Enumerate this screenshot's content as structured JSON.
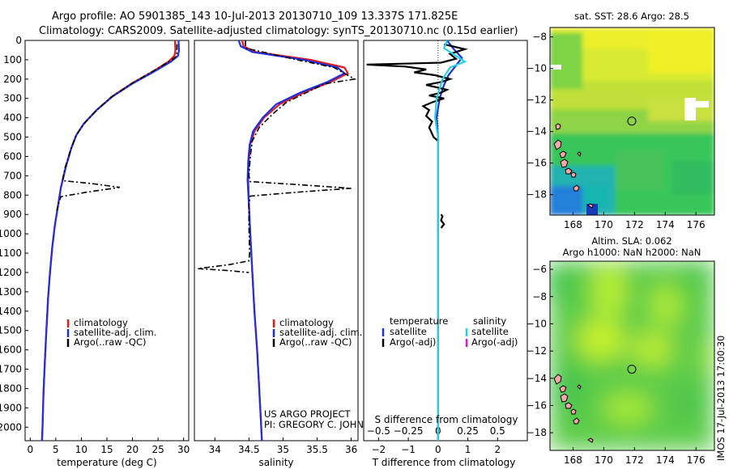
{
  "figure": {
    "title_line1": "Argo profile: AO 5901385_143 10-Jul-2013 20130710_109 13.337S 171.825E",
    "title_line2": "Climatology: CARS2009. Satellite-adjusted climatology: synTS_20130710.nc (0.15d earlier)",
    "credit_line1": "US ARGO PROJECT",
    "credit_line2": "PI: GREGORY C. JOHNSON",
    "side_stamp": "IMOS 17-Jul-2013 17:00:30",
    "colors": {
      "climatology": "#e41a1c",
      "satellite": "#1f2fe0",
      "argo": "#000000",
      "sal_sat": "#22d3e6",
      "sal_argo": "#d020d0"
    }
  },
  "chart_data": [
    {
      "id": "temperature",
      "type": "line",
      "xlabel": "temperature (deg C)",
      "xlim": [
        -1,
        31
      ],
      "xticks": [
        0,
        5,
        10,
        15,
        20,
        25,
        30
      ],
      "ylim": [
        2070,
        0
      ],
      "yticks": [
        0,
        100,
        200,
        300,
        400,
        500,
        600,
        700,
        800,
        900,
        1000,
        1100,
        1200,
        1300,
        1400,
        1500,
        1600,
        1700,
        1800,
        1900,
        2000
      ],
      "legend": [
        "climatology",
        "satellite-adj. clim.",
        "Argo(..raw -QC)"
      ],
      "legend_placement": "lower-center",
      "series": [
        {
          "name": "climatology",
          "style": "solid",
          "color": "#e41a1c",
          "points": [
            [
              28.3,
              0
            ],
            [
              28.4,
              50
            ],
            [
              28.2,
              80
            ],
            [
              27,
              110
            ],
            [
              24,
              160
            ],
            [
              20,
              220
            ],
            [
              16,
              290
            ],
            [
              13,
              360
            ],
            [
              10.5,
              430
            ],
            [
              9,
              490
            ],
            [
              8,
              560
            ],
            [
              7,
              650
            ],
            [
              6,
              760
            ],
            [
              5.4,
              860
            ],
            [
              4.8,
              960
            ],
            [
              4.3,
              1070
            ],
            [
              3.9,
              1190
            ],
            [
              3.5,
              1330
            ],
            [
              3.2,
              1480
            ],
            [
              2.9,
              1640
            ],
            [
              2.6,
              1820
            ],
            [
              2.4,
              2000
            ],
            [
              2.3,
              2070
            ]
          ]
        },
        {
          "name": "satellite-adj. clim.",
          "style": "solid",
          "color": "#1f2fe0",
          "points": [
            [
              29,
              0
            ],
            [
              29.1,
              50
            ],
            [
              28.9,
              80
            ],
            [
              27.5,
              110
            ],
            [
              24.3,
              160
            ],
            [
              20.2,
              220
            ],
            [
              16.1,
              290
            ],
            [
              13,
              360
            ],
            [
              10.5,
              430
            ],
            [
              9,
              490
            ],
            [
              8,
              560
            ],
            [
              7,
              650
            ],
            [
              6,
              760
            ],
            [
              5.4,
              860
            ],
            [
              4.8,
              960
            ],
            [
              4.3,
              1070
            ],
            [
              3.9,
              1190
            ],
            [
              3.5,
              1330
            ],
            [
              3.2,
              1480
            ],
            [
              2.9,
              1640
            ],
            [
              2.6,
              1820
            ],
            [
              2.4,
              2000
            ],
            [
              2.3,
              2070
            ]
          ]
        },
        {
          "name": "Argo(..raw -QC)",
          "style": "dashdot",
          "color": "#000000",
          "points": [
            [
              28.7,
              20
            ],
            [
              28.7,
              60
            ],
            [
              28.5,
              85
            ],
            [
              26.8,
              115
            ],
            [
              23.6,
              165
            ],
            [
              19.7,
              225
            ],
            [
              15.8,
              295
            ],
            [
              12.8,
              365
            ],
            [
              10.4,
              435
            ],
            [
              8.9,
              495
            ],
            [
              7.9,
              565
            ],
            [
              6.8,
              660
            ],
            [
              6.3,
              725
            ],
            [
              12,
              740
            ],
            [
              17.5,
              760
            ],
            [
              11,
              785
            ],
            [
              6,
              808
            ],
            [
              5.6,
              840
            ],
            [
              5.2,
              880
            ]
          ]
        }
      ]
    },
    {
      "id": "salinity",
      "type": "line",
      "xlabel": "salinity",
      "xlim": [
        33.7,
        36.1
      ],
      "xticks": [
        34,
        34.5,
        35,
        35.5,
        36
      ],
      "ylim": [
        2070,
        0
      ],
      "legend": [
        "climatology",
        "satellite-adj. clim.",
        "Argo(..raw -QC)"
      ],
      "legend_placement": "lower-center",
      "series": [
        {
          "name": "climatology",
          "style": "solid",
          "color": "#e41a1c",
          "points": [
            [
              34.4,
              0
            ],
            [
              34.42,
              30
            ],
            [
              34.6,
              60
            ],
            [
              35.4,
              100
            ],
            [
              35.9,
              140
            ],
            [
              35.95,
              170
            ],
            [
              35.7,
              215
            ],
            [
              35.3,
              270
            ],
            [
              34.95,
              330
            ],
            [
              34.72,
              400
            ],
            [
              34.58,
              470
            ],
            [
              34.52,
              540
            ],
            [
              34.5,
              620
            ],
            [
              34.49,
              720
            ],
            [
              34.5,
              850
            ],
            [
              34.52,
              1000
            ],
            [
              34.55,
              1200
            ],
            [
              34.58,
              1400
            ],
            [
              34.62,
              1600
            ],
            [
              34.65,
              1800
            ],
            [
              34.68,
              2000
            ],
            [
              34.69,
              2070
            ]
          ]
        },
        {
          "name": "satellite-adj. clim.",
          "style": "solid",
          "color": "#1f2fe0",
          "points": [
            [
              34.35,
              0
            ],
            [
              34.38,
              30
            ],
            [
              34.55,
              60
            ],
            [
              35.3,
              100
            ],
            [
              35.8,
              140
            ],
            [
              35.9,
              170
            ],
            [
              35.65,
              215
            ],
            [
              35.25,
              270
            ],
            [
              34.9,
              330
            ],
            [
              34.7,
              400
            ],
            [
              34.56,
              470
            ],
            [
              34.51,
              540
            ],
            [
              34.49,
              620
            ],
            [
              34.48,
              720
            ],
            [
              34.5,
              850
            ],
            [
              34.52,
              1000
            ],
            [
              34.55,
              1200
            ],
            [
              34.58,
              1400
            ],
            [
              34.62,
              1600
            ],
            [
              34.65,
              1800
            ],
            [
              34.68,
              2000
            ],
            [
              34.69,
              2070
            ]
          ]
        },
        {
          "name": "Argo(..raw -QC)",
          "style": "dashdot",
          "color": "#000000",
          "points": [
            [
              34.45,
              0
            ],
            [
              34.45,
              40
            ],
            [
              34.7,
              60
            ],
            [
              35.2,
              100
            ],
            [
              35.75,
              140
            ],
            [
              36.05,
              200
            ],
            [
              35.6,
              225
            ],
            [
              35.4,
              260
            ],
            [
              35.05,
              320
            ],
            [
              34.85,
              380
            ],
            [
              34.65,
              450
            ],
            [
              34.55,
              520
            ],
            [
              34.52,
              600
            ],
            [
              34.5,
              700
            ],
            [
              34.52,
              730
            ],
            [
              35.2,
              745
            ],
            [
              36,
              765
            ],
            [
              35.2,
              785
            ],
            [
              34.52,
              805
            ],
            [
              34.5,
              850
            ],
            [
              34.5,
              950
            ],
            [
              34.51,
              1100
            ],
            [
              34.5,
              1140
            ],
            [
              34.2,
              1160
            ],
            [
              33.75,
              1180
            ],
            [
              34.2,
              1190
            ],
            [
              34.5,
              1200
            ]
          ]
        }
      ]
    },
    {
      "id": "difference",
      "type": "line",
      "xlabel": "T difference from climatology",
      "xlabel_top": "S difference from climatology",
      "xlim": [
        -2.5,
        3
      ],
      "xticks": [
        -2,
        -1,
        0,
        1,
        2
      ],
      "xticks_salinity": [
        -0.5,
        -0.25,
        0,
        0.25,
        0.5
      ],
      "ylim": [
        2070,
        0
      ],
      "legend_temperature_title": "temperature",
      "legend_salinity_title": "salinity",
      "legend_temperature": [
        "satellite",
        "Argo(-adj)"
      ],
      "legend_salinity": [
        "satellite",
        "Argo(-adj)"
      ],
      "series": [
        {
          "name": "satellite",
          "style": "solid",
          "color": "#1f2fe0",
          "points": [
            [
              0.3,
              0
            ],
            [
              0.5,
              40
            ],
            [
              0.8,
              90
            ],
            [
              0.6,
              130
            ],
            [
              0.35,
              180
            ],
            [
              0.2,
              230
            ],
            [
              0.05,
              300
            ],
            [
              -0.05,
              400
            ],
            [
              0,
              500
            ],
            [
              0,
              800
            ],
            [
              0,
              2070
            ]
          ]
        },
        {
          "name": "Argo(-adj)",
          "style": "solid",
          "color": "#000000",
          "points": [
            [
              0.2,
              20
            ],
            [
              0.9,
              45
            ],
            [
              0.4,
              70
            ],
            [
              0.6,
              95
            ],
            [
              0.1,
              115
            ],
            [
              -2.4,
              125
            ],
            [
              -1.1,
              135
            ],
            [
              -0.4,
              150
            ],
            [
              -0.8,
              165
            ],
            [
              -0.1,
              180
            ],
            [
              0.4,
              200
            ],
            [
              0.1,
              215
            ],
            [
              -0.4,
              230
            ],
            [
              0.3,
              255
            ],
            [
              0.1,
              270
            ],
            [
              -0.3,
              285
            ],
            [
              0.2,
              300
            ],
            [
              -0.2,
              320
            ],
            [
              -0.5,
              340
            ],
            [
              -0.3,
              360
            ],
            [
              -0.4,
              390
            ],
            [
              -0.2,
              420
            ],
            [
              -0.3,
              450
            ],
            [
              -0.15,
              500
            ],
            [
              0,
              520
            ]
          ]
        },
        {
          "name": "salinity satellite",
          "style": "solid",
          "color": "#22d3e6",
          "points": [
            [
              0.3,
              0
            ],
            [
              0.2,
              40
            ],
            [
              0.6,
              80
            ],
            [
              0.9,
              110
            ],
            [
              0.4,
              140
            ],
            [
              0.15,
              200
            ],
            [
              -0.05,
              300
            ],
            [
              -0.1,
              400
            ],
            [
              0,
              500
            ],
            [
              0,
              700
            ],
            [
              0,
              1000
            ],
            [
              0,
              2070
            ]
          ]
        },
        {
          "name": "salinity Argo(-adj)",
          "style": "solid",
          "color": "#000000",
          "points": [
            [
              0.1,
              900
            ],
            [
              0.15,
              910
            ],
            [
              0.1,
              930
            ],
            [
              0.2,
              950
            ],
            [
              0.1,
              970
            ]
          ]
        }
      ]
    },
    {
      "id": "sst-map",
      "type": "heatmap",
      "title": "sat. SST: 28.6  Argo: 28.5",
      "xlim": [
        166.5,
        177.2
      ],
      "ylim": [
        -19.3,
        -7.4
      ],
      "xticks": [
        168,
        170,
        172,
        174,
        176
      ],
      "yticks": [
        -8,
        -10,
        -12,
        -14,
        -16,
        -18
      ],
      "marker": {
        "lon": 171.825,
        "lat": -13.337
      }
    },
    {
      "id": "sla-map",
      "type": "heatmap",
      "title_line1": "Altim. SLA: 0.062",
      "title_line2": "Argo h1000: NaN h2000: NaN",
      "xlim": [
        166.5,
        177.2
      ],
      "ylim": [
        -19.3,
        -5.4
      ],
      "xticks": [
        168,
        170,
        172,
        174,
        176
      ],
      "yticks": [
        -6,
        -8,
        -10,
        -12,
        -14,
        -16,
        -18
      ],
      "marker": {
        "lon": 171.825,
        "lat": -13.337
      }
    }
  ]
}
